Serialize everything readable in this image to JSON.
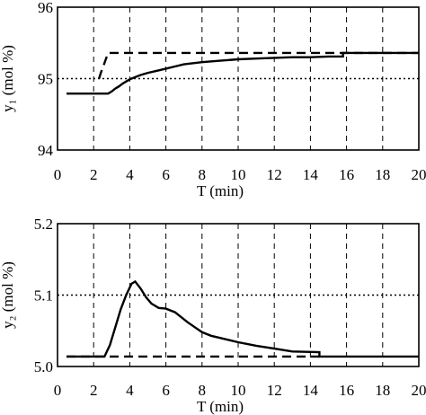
{
  "chart_data": [
    {
      "type": "line",
      "title": "",
      "xlabel": "T (min)",
      "ylabel": "y₁ (mol %)",
      "xlim": [
        0,
        20
      ],
      "ylim": [
        94,
        96
      ],
      "xticks": [
        "0",
        "2",
        "4",
        "6",
        "8",
        "10",
        "12",
        "14",
        "16",
        "18",
        "20"
      ],
      "yticks": [
        "94",
        "95",
        "96"
      ],
      "grid": {
        "x": "dashed",
        "y": "dotted"
      },
      "series": [
        {
          "style": "solid",
          "x": [
            0.5,
            2.8,
            3.0,
            3.2,
            3.4,
            3.6,
            3.8,
            4.0,
            4.3,
            4.6,
            5.0,
            5.5,
            6.0,
            6.5,
            7.0,
            8.0,
            9.0,
            10.0,
            11.0,
            12.0,
            13.0,
            14.0,
            15.0,
            15.8,
            15.8,
            20.0
          ],
          "y": [
            94.79,
            94.79,
            94.82,
            94.86,
            94.89,
            94.93,
            94.96,
            94.99,
            95.02,
            95.05,
            95.08,
            95.11,
            95.14,
            95.17,
            95.2,
            95.23,
            95.25,
            95.27,
            95.28,
            95.29,
            95.3,
            95.3,
            95.31,
            95.31,
            95.36,
            95.36
          ]
        },
        {
          "style": "dashed",
          "x": [
            2.3,
            2.4,
            2.6,
            2.8,
            20.0
          ],
          "y": [
            95.0,
            95.08,
            95.22,
            95.36,
            95.36
          ]
        }
      ]
    },
    {
      "type": "line",
      "title": "",
      "xlabel": "T (min)",
      "ylabel": "y₂ (mol %)",
      "xlim": [
        0,
        20
      ],
      "ylim": [
        5.0,
        5.2
      ],
      "xticks": [
        "0",
        "2",
        "4",
        "6",
        "8",
        "10",
        "12",
        "14",
        "16",
        "18",
        "20"
      ],
      "yticks": [
        "5.0",
        "5.1",
        "5.2"
      ],
      "grid": {
        "x": "dashed",
        "y": "dotted"
      },
      "series": [
        {
          "style": "solid",
          "x": [
            0.5,
            2.6,
            2.9,
            3.2,
            3.5,
            3.8,
            4.1,
            4.3,
            4.6,
            4.9,
            5.2,
            5.6,
            6.0,
            6.5,
            6.8,
            7.2,
            7.6,
            8.0,
            8.5,
            9.0,
            9.5,
            10.0,
            11.0,
            12.0,
            13.0,
            14.5,
            14.5,
            20.0
          ],
          "y": [
            5.014,
            5.014,
            5.03,
            5.055,
            5.08,
            5.1,
            5.116,
            5.119,
            5.109,
            5.097,
            5.088,
            5.082,
            5.081,
            5.076,
            5.07,
            5.062,
            5.055,
            5.048,
            5.043,
            5.04,
            5.037,
            5.034,
            5.029,
            5.025,
            5.021,
            5.02,
            5.014,
            5.014
          ]
        },
        {
          "style": "dashed",
          "x": [
            0.5,
            14.5
          ],
          "y": [
            5.014,
            5.014
          ]
        }
      ]
    }
  ]
}
